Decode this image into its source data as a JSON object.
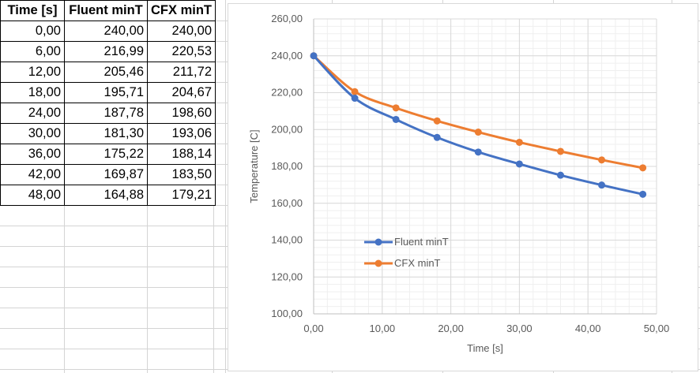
{
  "table": {
    "headers": [
      "Time [s]",
      "Fluent minT",
      "CFX minT"
    ],
    "rows": [
      [
        "0,00",
        "240,00",
        "240,00"
      ],
      [
        "6,00",
        "216,99",
        "220,53"
      ],
      [
        "12,00",
        "205,46",
        "211,72"
      ],
      [
        "18,00",
        "195,71",
        "204,67"
      ],
      [
        "24,00",
        "187,78",
        "198,60"
      ],
      [
        "30,00",
        "181,30",
        "193,06"
      ],
      [
        "36,00",
        "175,22",
        "188,14"
      ],
      [
        "42,00",
        "169,87",
        "183,50"
      ],
      [
        "48,00",
        "164,88",
        "179,21"
      ]
    ]
  },
  "chart_data": {
    "type": "line",
    "xlabel": "Time [s]",
    "ylabel": "Temperature [C]",
    "xlim": [
      0,
      50
    ],
    "ylim": [
      100,
      260
    ],
    "xticks": [
      0,
      10,
      20,
      30,
      40,
      50
    ],
    "yticks": [
      100,
      120,
      140,
      160,
      180,
      200,
      220,
      240,
      260
    ],
    "xtick_labels": [
      "0,00",
      "10,00",
      "20,00",
      "30,00",
      "40,00",
      "50,00"
    ],
    "ytick_labels": [
      "100,00",
      "120,00",
      "140,00",
      "160,00",
      "180,00",
      "200,00",
      "220,00",
      "240,00",
      "260,00"
    ],
    "grid": true,
    "smooth": true,
    "legend_position": "inside-left",
    "x": [
      0,
      6,
      12,
      18,
      24,
      30,
      36,
      42,
      48
    ],
    "series": [
      {
        "name": "Fluent minT",
        "color": "#4472c4",
        "values": [
          240.0,
          216.99,
          205.46,
          195.71,
          187.78,
          181.3,
          175.22,
          169.87,
          164.88
        ]
      },
      {
        "name": "CFX minT",
        "color": "#ed7d31",
        "values": [
          240.0,
          220.53,
          211.72,
          204.67,
          198.6,
          193.06,
          188.14,
          183.5,
          179.21
        ]
      }
    ]
  }
}
